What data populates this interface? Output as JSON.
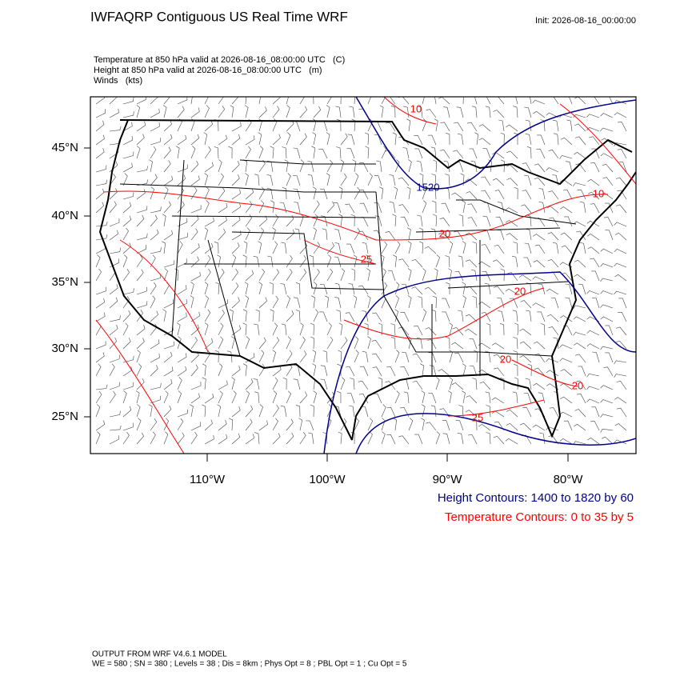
{
  "header": {
    "title": "IWFAQRP Contiguous US Real Time WRF",
    "init": "Init: 2026-08-16_00:00:00"
  },
  "fields": [
    "Temperature at 850 hPa valid at 2026-08-16_08:00:00 UTC   (C)",
    "Height at 850 hPa valid at 2026-08-16_08:00:00 UTC   (m)",
    "Winds   (kts)"
  ],
  "map": {
    "lat_labels": [
      "45°N",
      "40°N",
      "35°N",
      "30°N",
      "25°N"
    ],
    "lon_labels": [
      "110°W",
      "100°W",
      "90°W",
      "80°W"
    ],
    "contour_labels": [
      "10",
      "1520",
      "10",
      "20",
      "25",
      "20",
      "20",
      "20",
      "25"
    ]
  },
  "legend": {
    "height": "Height Contours: 1400 to 1820 by 60",
    "temperature": "Temperature Contours: 0 to 35 by 5"
  },
  "footer": {
    "model": "OUTPUT FROM WRF V4.6.1 MODEL",
    "settings": "WE = 580 ; SN = 380 ; Levels = 38 ; Dis = 8km ; Phys Opt = 8 ; PBL Opt = 1 ; Cu Opt = 5"
  }
}
